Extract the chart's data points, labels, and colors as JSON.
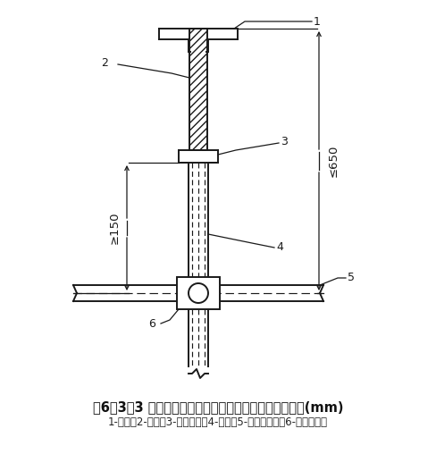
{
  "title": "图6．3．3 立杆顶端可调托撑伸出顶层水平杆的悬臂长度(mm)",
  "caption": "1-托座；2-螺杆；3-调节螺母；4-立杆；5-顶层水平杆；6-碗扣接头件",
  "bg_color": "#ffffff",
  "line_color": "#1a1a1a",
  "label_1": "1",
  "label_2": "2",
  "label_3": "3",
  "label_4": "4",
  "label_5": "5",
  "label_6": "6",
  "dim_left": "≥150",
  "dim_right": "≤650",
  "title_fontsize": 10.5,
  "caption_fontsize": 8.5
}
